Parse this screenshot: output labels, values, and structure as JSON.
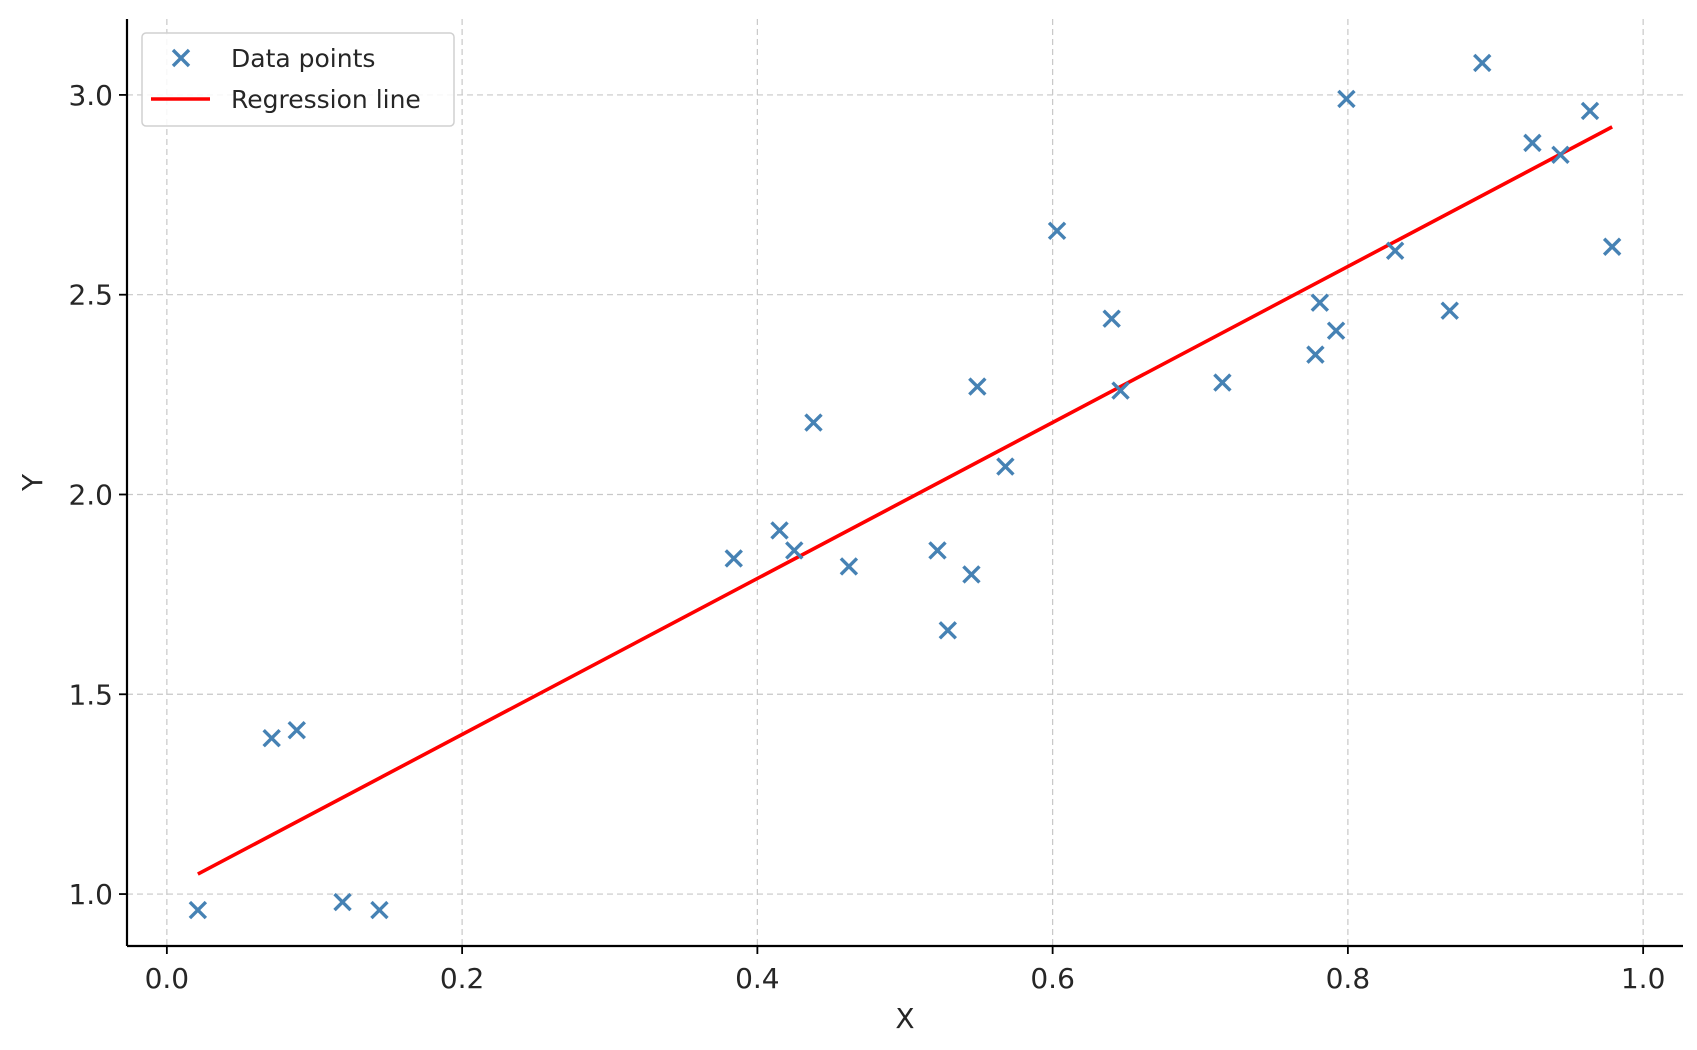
{
  "chart_data": {
    "type": "scatter",
    "title": "",
    "xlabel": "X",
    "ylabel": "Y",
    "xlim": [
      -0.027,
      1.027
    ],
    "ylim": [
      0.87,
      3.19
    ],
    "xticks": [
      0.0,
      0.2,
      0.4,
      0.6,
      0.8,
      1.0
    ],
    "xtick_labels": [
      "0.0",
      "0.2",
      "0.4",
      "0.6",
      "0.8",
      "1.0"
    ],
    "yticks": [
      1.0,
      1.5,
      2.0,
      2.5,
      3.0
    ],
    "ytick_labels": [
      "1.0",
      "1.5",
      "2.0",
      "2.5",
      "3.0"
    ],
    "grid": true,
    "legend_position": "top-left",
    "series": [
      {
        "name": "Data points",
        "kind": "scatter",
        "marker": "x",
        "color": "#4682b4",
        "points": [
          {
            "x": 0.021,
            "y": 0.96
          },
          {
            "x": 0.071,
            "y": 1.39
          },
          {
            "x": 0.088,
            "y": 1.41
          },
          {
            "x": 0.119,
            "y": 0.98
          },
          {
            "x": 0.144,
            "y": 0.96
          },
          {
            "x": 0.384,
            "y": 1.84
          },
          {
            "x": 0.415,
            "y": 1.91
          },
          {
            "x": 0.425,
            "y": 1.86
          },
          {
            "x": 0.438,
            "y": 2.18
          },
          {
            "x": 0.462,
            "y": 1.82
          },
          {
            "x": 0.522,
            "y": 1.86
          },
          {
            "x": 0.529,
            "y": 1.66
          },
          {
            "x": 0.545,
            "y": 1.8
          },
          {
            "x": 0.549,
            "y": 2.27
          },
          {
            "x": 0.568,
            "y": 2.07
          },
          {
            "x": 0.603,
            "y": 2.66
          },
          {
            "x": 0.64,
            "y": 2.44
          },
          {
            "x": 0.646,
            "y": 2.26
          },
          {
            "x": 0.715,
            "y": 2.28
          },
          {
            "x": 0.778,
            "y": 2.35
          },
          {
            "x": 0.781,
            "y": 2.48
          },
          {
            "x": 0.792,
            "y": 2.41
          },
          {
            "x": 0.799,
            "y": 2.99
          },
          {
            "x": 0.832,
            "y": 2.61
          },
          {
            "x": 0.869,
            "y": 2.46
          },
          {
            "x": 0.891,
            "y": 3.08
          },
          {
            "x": 0.925,
            "y": 2.88
          },
          {
            "x": 0.944,
            "y": 2.85
          },
          {
            "x": 0.964,
            "y": 2.96
          },
          {
            "x": 0.979,
            "y": 2.62
          }
        ]
      },
      {
        "name": "Regression line",
        "kind": "line",
        "color": "#ff0000",
        "points": [
          {
            "x": 0.021,
            "y": 1.05
          },
          {
            "x": 0.979,
            "y": 2.92
          }
        ]
      }
    ]
  }
}
